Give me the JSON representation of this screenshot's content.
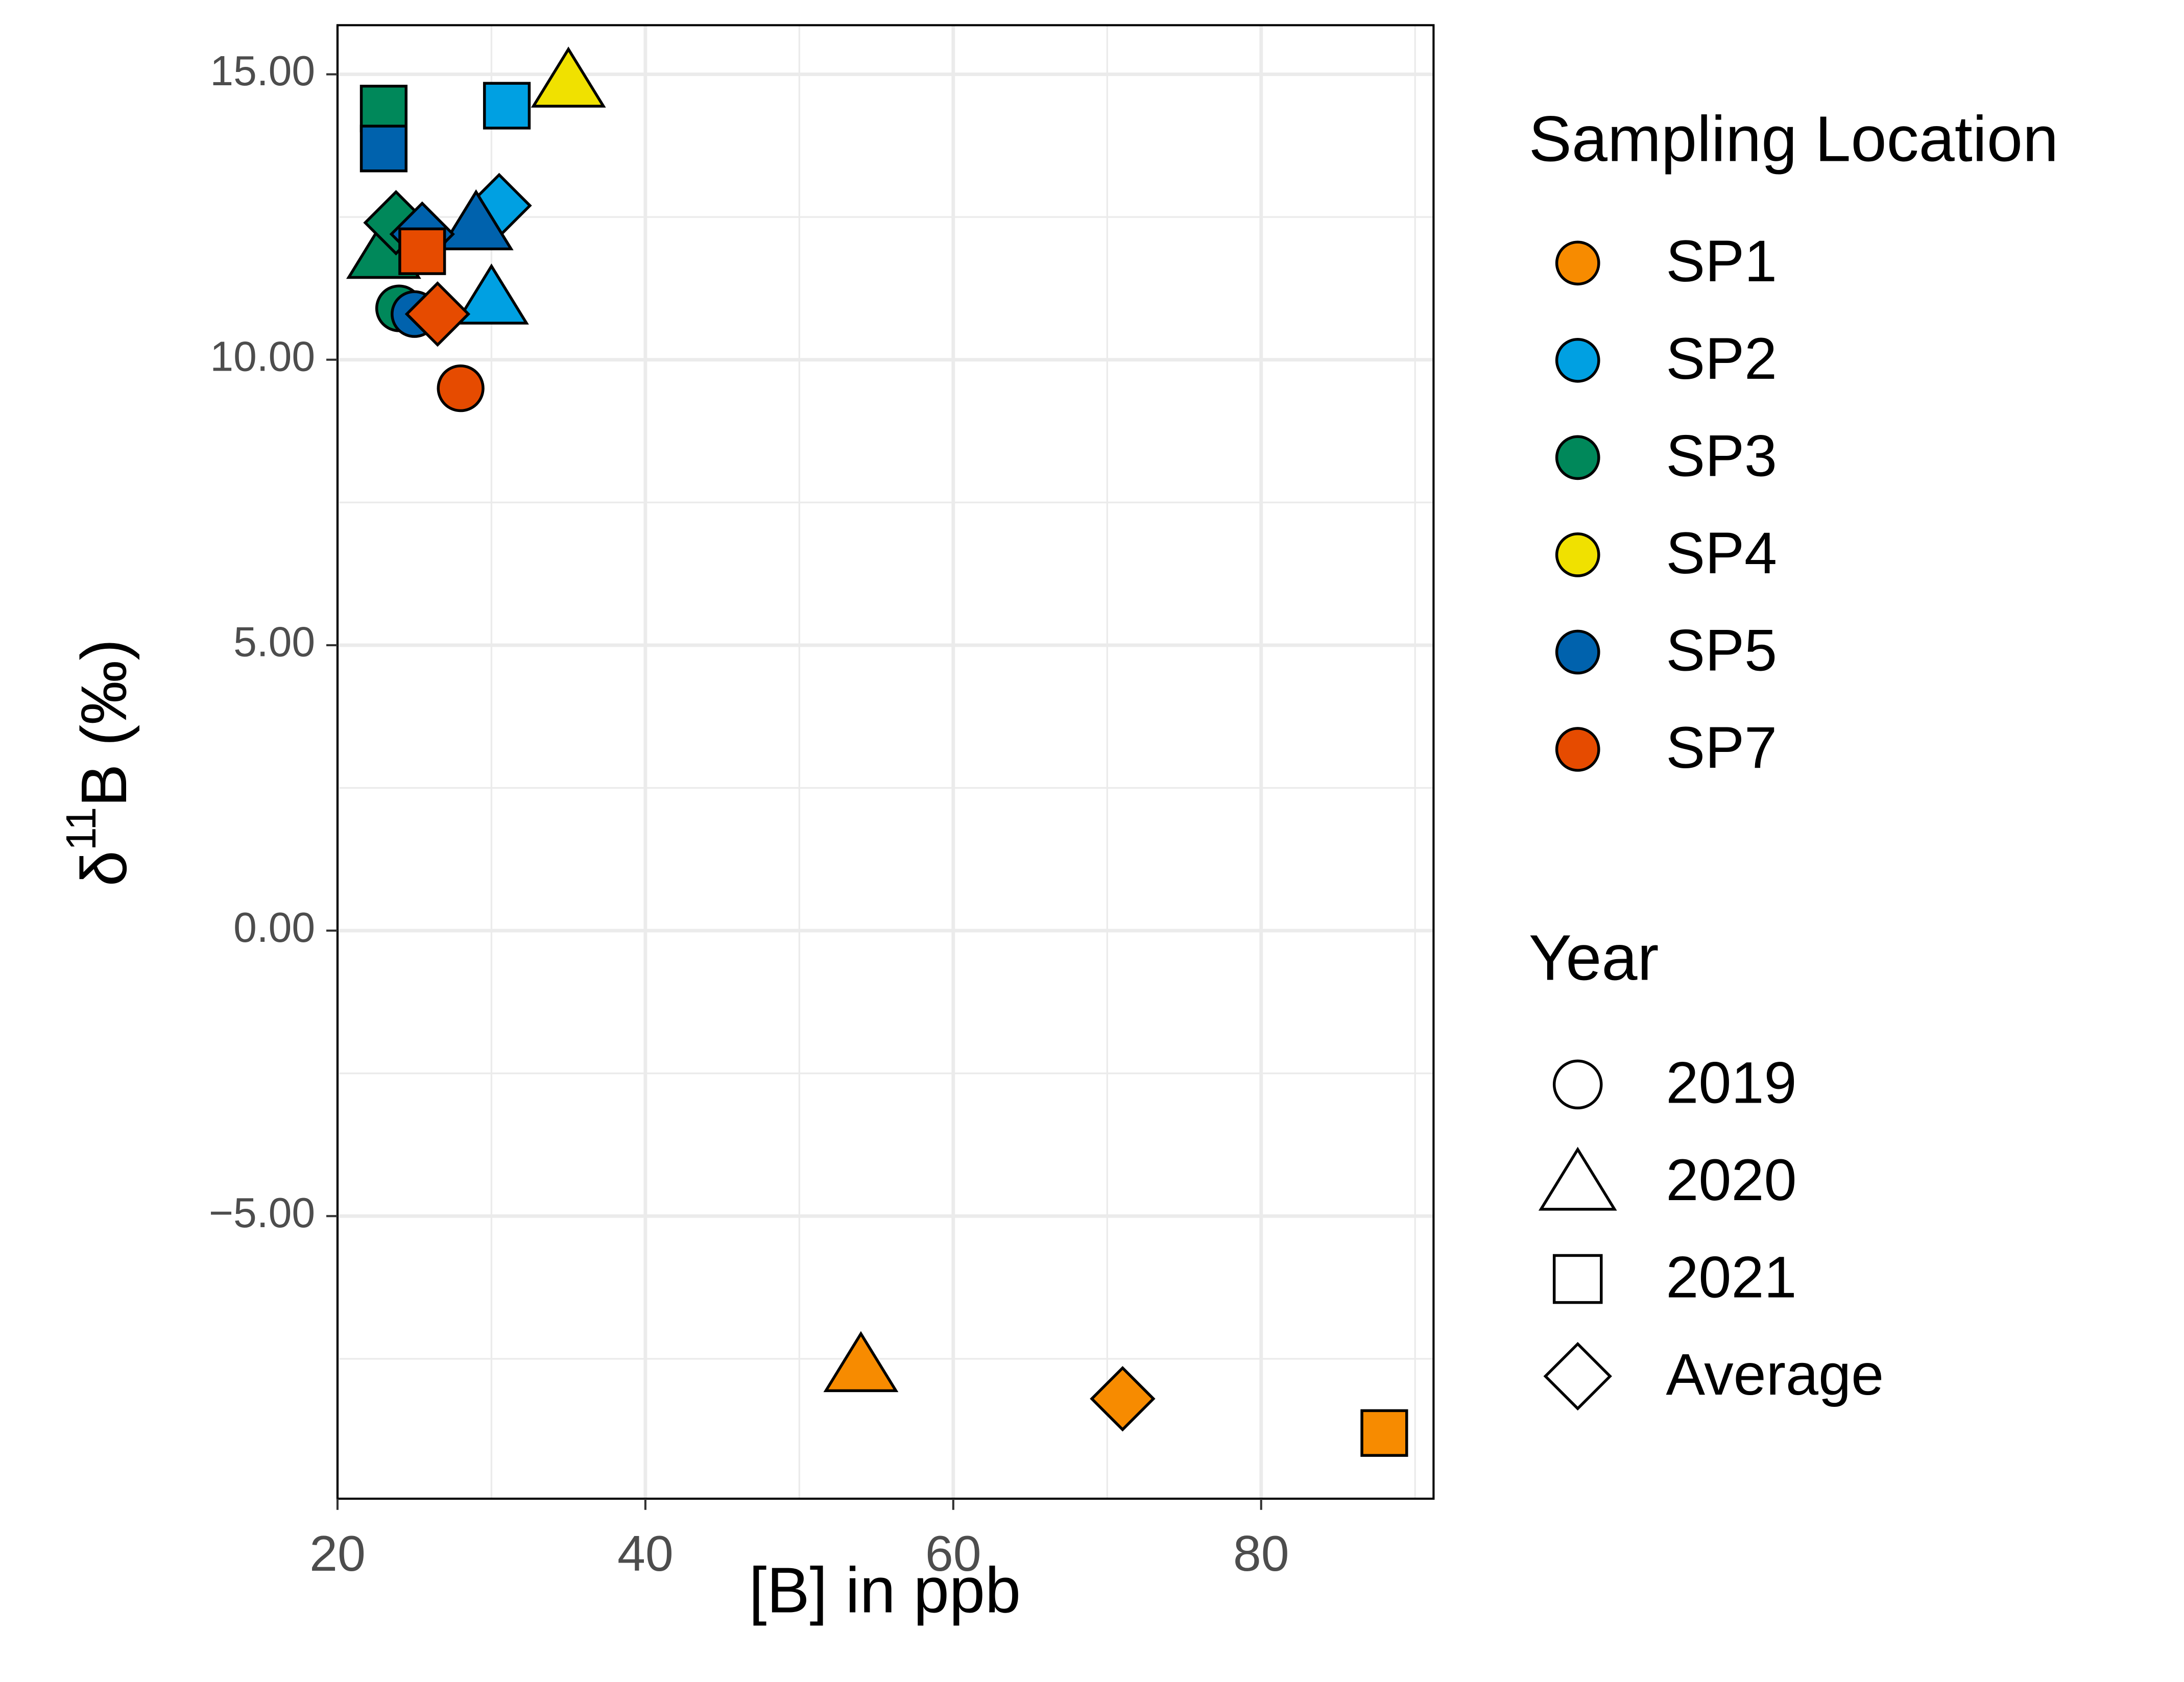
{
  "chart_data": {
    "type": "scatter",
    "x_label": "[B] in ppb",
    "y_label": {
      "base": "δ",
      "sup": "11",
      "rest": "B (‰)"
    },
    "xlim": [
      20,
      91.2
    ],
    "ylim": [
      -9.95,
      15.86
    ],
    "xticks": [
      20,
      40,
      60,
      80
    ],
    "yticks": [
      {
        "value": -5,
        "label": "−5.00"
      },
      {
        "value": 0,
        "label": "0.00"
      },
      {
        "value": 5,
        "label": "5.00"
      },
      {
        "value": 10,
        "label": "10.00"
      },
      {
        "value": 15,
        "label": "15.00"
      }
    ],
    "grid": true,
    "legend_title": "Sampling Location",
    "shape_legend_title": "Year",
    "shapes": [
      {
        "name": "2019",
        "shape": "circle"
      },
      {
        "name": "2020",
        "shape": "triangle"
      },
      {
        "name": "2021",
        "shape": "square"
      },
      {
        "name": "Average",
        "shape": "diamond"
      }
    ],
    "series": [
      {
        "name": "SP1",
        "color": "#f78b00",
        "x": [
          54,
          71,
          88
        ],
        "values": [
          -7.6,
          -8.2,
          -8.8
        ],
        "years": [
          "2020",
          "Average",
          "2021"
        ]
      },
      {
        "name": "SP2",
        "color": "#00a0e2",
        "x": [
          31,
          30.5,
          30
        ],
        "values": [
          14.45,
          12.7,
          11.1
        ],
        "years": [
          "2021",
          "Average",
          "2020"
        ]
      },
      {
        "name": "SP3",
        "color": "#00885a",
        "x": [
          23,
          23,
          23.8,
          24
        ],
        "values": [
          14.4,
          11.9,
          12.4,
          10.9
        ],
        "years": [
          "2021",
          "2020",
          "Average",
          "2019"
        ]
      },
      {
        "name": "SP4",
        "color": "#f0e100",
        "x": [
          35
        ],
        "values": [
          14.9
        ],
        "years": [
          "2020"
        ]
      },
      {
        "name": "SP5",
        "color": "#0062ad",
        "x": [
          23,
          29,
          25.5,
          25
        ],
        "values": [
          13.7,
          12.4,
          12.2,
          10.8
        ],
        "years": [
          "2021",
          "2020",
          "Average",
          "2019"
        ]
      },
      {
        "name": "SP7",
        "color": "#e64b00",
        "x": [
          25.5,
          26.5,
          28
        ],
        "values": [
          11.9,
          10.8,
          9.5
        ],
        "years": [
          "2021",
          "Average",
          "2019"
        ]
      }
    ]
  }
}
